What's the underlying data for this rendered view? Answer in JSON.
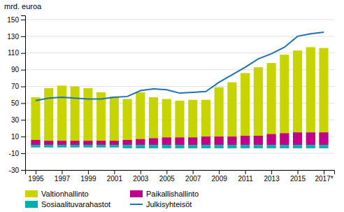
{
  "chart_data": {
    "type": "bar",
    "ylabel": "mrd. euroa",
    "x": [
      1995,
      1996,
      1997,
      1998,
      1999,
      2000,
      2001,
      2002,
      2003,
      2004,
      2005,
      2006,
      2007,
      2008,
      2009,
      2010,
      2011,
      2012,
      2013,
      2014,
      2015,
      2016,
      2017
    ],
    "series": [
      {
        "name": "Valtionhallinto",
        "type": "bar",
        "color": "#c8d400",
        "values": [
          57,
          68,
          71,
          70,
          68,
          63,
          58,
          55,
          63,
          57,
          55,
          53,
          54,
          54,
          69,
          75,
          86,
          93,
          98,
          108,
          113,
          117,
          116
        ]
      },
      {
        "name": "Paikallishallinto",
        "type": "bar",
        "color": "#c0008a",
        "values": [
          6,
          5,
          5,
          5,
          5,
          5,
          5,
          6,
          7,
          8,
          9,
          9,
          9,
          10,
          10,
          10,
          11,
          11,
          13,
          14,
          15,
          15,
          15
        ]
      },
      {
        "name": "Sosiaalituvarahastot",
        "type": "bar",
        "color": "#00b0b0",
        "values": [
          -3,
          -3,
          -3,
          -3,
          -3,
          -3,
          -3,
          -4,
          -4,
          -4,
          -4,
          -4,
          -4,
          -4,
          -4,
          -4,
          -4,
          -4,
          -4,
          -4,
          -4,
          -4,
          -4
        ]
      },
      {
        "name": "Julkisyhteisöt",
        "type": "line",
        "color": "#2070b4",
        "values": [
          53,
          56,
          57,
          56,
          55,
          55,
          57,
          58,
          65,
          67,
          66,
          62,
          63,
          64,
          75,
          84,
          93,
          103,
          109,
          117,
          130,
          133,
          135
        ]
      }
    ],
    "xlim": [
      1994.2,
      2017.8
    ],
    "xticks": [
      1995,
      1997,
      1999,
      2001,
      2003,
      2005,
      2007,
      2009,
      2011,
      2013,
      2015,
      {
        "value": 2017,
        "label": "2017*"
      }
    ],
    "ylim": [
      -30,
      155
    ],
    "yticks": [
      -30,
      -10,
      10,
      30,
      50,
      70,
      90,
      110,
      130,
      150
    ],
    "stacked": false,
    "grid": true,
    "legend": "bottom"
  }
}
